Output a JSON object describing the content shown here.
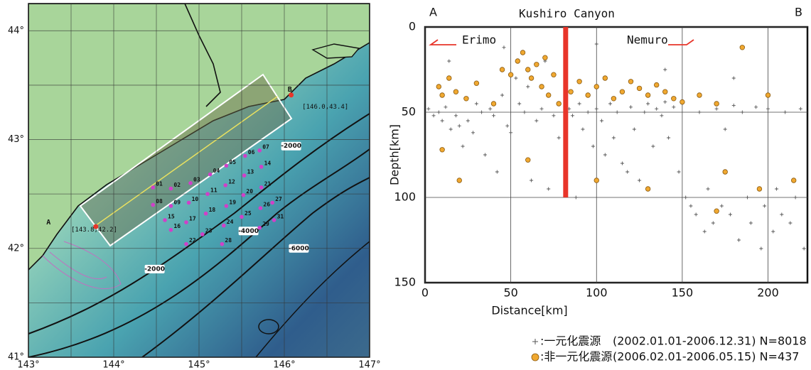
{
  "chart_data": [
    {
      "type": "map",
      "xlim": [
        143,
        147
      ],
      "ylim": [
        41,
        44.25
      ],
      "xticks": [
        {
          "value": 143,
          "label": "143°"
        },
        {
          "value": 144,
          "label": "144°"
        },
        {
          "value": 145,
          "label": "145°"
        },
        {
          "value": 146,
          "label": "146°"
        },
        {
          "value": 147,
          "label": "147°"
        }
      ],
      "yticks": [
        {
          "value": 41,
          "label": "41°"
        },
        {
          "value": 42,
          "label": "42°"
        },
        {
          "value": 43,
          "label": "43°"
        },
        {
          "value": 44,
          "label": "44°"
        }
      ],
      "minor_xticks": [
        143.5,
        144.5,
        145.5,
        146.5
      ],
      "minor_yticks": [
        41.5,
        42.5,
        43.5
      ],
      "grid": true,
      "stations": [
        {
          "label": "01",
          "lon": 144.46,
          "lat": 42.56
        },
        {
          "label": "02",
          "lon": 144.67,
          "lat": 42.55
        },
        {
          "label": "03",
          "lon": 144.9,
          "lat": 42.6
        },
        {
          "label": "04",
          "lon": 145.13,
          "lat": 42.68
        },
        {
          "label": "05",
          "lon": 145.32,
          "lat": 42.76
        },
        {
          "label": "06",
          "lon": 145.54,
          "lat": 42.85
        },
        {
          "label": "07",
          "lon": 145.71,
          "lat": 42.9
        },
        {
          "label": "08",
          "lon": 144.46,
          "lat": 42.4
        },
        {
          "label": "09",
          "lon": 144.67,
          "lat": 42.39
        },
        {
          "label": "10",
          "lon": 144.88,
          "lat": 42.42
        },
        {
          "label": "11",
          "lon": 145.1,
          "lat": 42.5
        },
        {
          "label": "12",
          "lon": 145.31,
          "lat": 42.58
        },
        {
          "label": "13",
          "lon": 145.53,
          "lat": 42.67
        },
        {
          "label": "14",
          "lon": 145.73,
          "lat": 42.75
        },
        {
          "label": "15",
          "lon": 144.6,
          "lat": 42.26
        },
        {
          "label": "16",
          "lon": 144.67,
          "lat": 42.17
        },
        {
          "label": "17",
          "lon": 144.85,
          "lat": 42.24
        },
        {
          "label": "18",
          "lon": 145.08,
          "lat": 42.32
        },
        {
          "label": "19",
          "lon": 145.32,
          "lat": 42.39
        },
        {
          "label": "20",
          "lon": 145.52,
          "lat": 42.49
        },
        {
          "label": "21",
          "lon": 145.73,
          "lat": 42.56
        },
        {
          "label": "22",
          "lon": 144.85,
          "lat": 42.04
        },
        {
          "label": "23",
          "lon": 145.04,
          "lat": 42.13
        },
        {
          "label": "24",
          "lon": 145.29,
          "lat": 42.21
        },
        {
          "label": "25",
          "lon": 145.5,
          "lat": 42.29
        },
        {
          "label": "26",
          "lon": 145.72,
          "lat": 42.37
        },
        {
          "label": "27",
          "lon": 145.86,
          "lat": 42.42
        },
        {
          "label": "28",
          "lon": 145.27,
          "lat": 42.04
        },
        {
          "label": "29",
          "lon": 145.71,
          "lat": 42.19
        },
        {
          "label": "31",
          "lon": 145.88,
          "lat": 42.26
        }
      ],
      "station_color": "#d040c8",
      "endpoints": [
        {
          "label": "A",
          "coords": "[143.8,42.2]",
          "lon": 143.79,
          "lat": 42.2,
          "label_lon": 143.21,
          "label_lat": 42.24,
          "coords_lon": 143.5,
          "coords_lat": 42.17
        },
        {
          "label": "B",
          "coords": "[146.0,43.4]",
          "lon": 146.08,
          "lat": 43.41,
          "label_lon": 146.04,
          "label_lat": 43.46,
          "coords_lon": 146.21,
          "coords_lat": 43.3
        }
      ],
      "endpoint_color": "#e8352a",
      "contour_labels": [
        {
          "text": "-2000",
          "lon": 146.08,
          "lat": 42.94
        },
        {
          "text": "-4000",
          "lon": 145.58,
          "lat": 42.16
        },
        {
          "text": "-6000",
          "lon": 146.17,
          "lat": 42.0
        },
        {
          "text": "-2000",
          "lon": 144.48,
          "lat": 41.81
        }
      ]
    },
    {
      "type": "scatter",
      "xlabel": "Distance[km]",
      "ylabel": "Depth[km]",
      "xlim": [
        0,
        223
      ],
      "ylim": [
        150,
        0
      ],
      "xticks": [
        0,
        50,
        100,
        150,
        200
      ],
      "yticks": [
        0,
        50,
        100,
        150
      ],
      "grid": true,
      "corner_left": "A",
      "corner_right": "B",
      "annotations": [
        "Kushiro Canyon",
        "Erimo",
        "Nemuro"
      ],
      "highlight": {
        "x": 82,
        "y": [
          0,
          100
        ],
        "color": "#e8352a"
      },
      "series": [
        {
          "name": ":一元化震源",
          "detail": "(2002.01.01-2006.12.31) N=8018",
          "marker": "plus",
          "color": "#555555",
          "x": [
            2,
            5,
            8,
            10,
            12,
            15,
            18,
            20,
            22,
            25,
            28,
            30,
            33,
            35,
            38,
            40,
            42,
            45,
            48,
            50,
            53,
            55,
            58,
            60,
            62,
            65,
            68,
            70,
            72,
            75,
            78,
            84,
            86,
            88,
            90,
            92,
            95,
            98,
            100,
            103,
            105,
            108,
            110,
            112,
            115,
            118,
            120,
            122,
            125,
            128,
            130,
            133,
            135,
            138,
            140,
            142,
            145,
            148,
            150,
            152,
            155,
            158,
            160,
            163,
            165,
            168,
            170,
            173,
            175,
            178,
            180,
            183,
            185,
            188,
            190,
            193,
            196,
            198,
            200,
            203,
            205,
            208,
            210,
            213,
            216,
            219,
            221,
            14,
            46,
            100,
            140,
            180
          ],
          "y": [
            48,
            52,
            50,
            55,
            47,
            60,
            52,
            58,
            70,
            55,
            62,
            45,
            50,
            75,
            48,
            52,
            85,
            40,
            58,
            62,
            30,
            45,
            50,
            35,
            90,
            55,
            48,
            20,
            95,
            52,
            65,
            48,
            52,
            100,
            45,
            60,
            50,
            70,
            48,
            55,
            75,
            45,
            65,
            50,
            80,
            85,
            47,
            60,
            90,
            50,
            45,
            70,
            48,
            52,
            44,
            65,
            47,
            85,
            45,
            100,
            105,
            110,
            50,
            120,
            95,
            115,
            48,
            105,
            60,
            110,
            46,
            125,
            50,
            100,
            115,
            47,
            130,
            105,
            48,
            120,
            95,
            110,
            50,
            115,
            100,
            48,
            130,
            20,
            12,
            10,
            25,
            30
          ]
        },
        {
          "name": ":非一元化震源",
          "detail": "(2006.02.01-2006.05.15) N=437",
          "marker": "circle",
          "color": "#f0a830",
          "x": [
            8,
            10,
            14,
            18,
            24,
            30,
            40,
            45,
            50,
            54,
            57,
            60,
            62,
            65,
            68,
            70,
            72,
            75,
            78,
            85,
            90,
            95,
            100,
            105,
            110,
            115,
            120,
            125,
            130,
            135,
            140,
            145,
            150,
            160,
            170,
            185,
            200,
            10,
            20,
            60,
            100,
            130,
            175,
            195,
            215,
            170
          ],
          "y": [
            35,
            40,
            30,
            38,
            42,
            33,
            45,
            25,
            28,
            20,
            15,
            25,
            30,
            22,
            35,
            18,
            40,
            28,
            45,
            38,
            32,
            40,
            35,
            30,
            42,
            38,
            32,
            36,
            40,
            34,
            38,
            42,
            44,
            40,
            45,
            12,
            40,
            72,
            90,
            78,
            90,
            95,
            85,
            95,
            90,
            108
          ]
        }
      ]
    }
  ]
}
